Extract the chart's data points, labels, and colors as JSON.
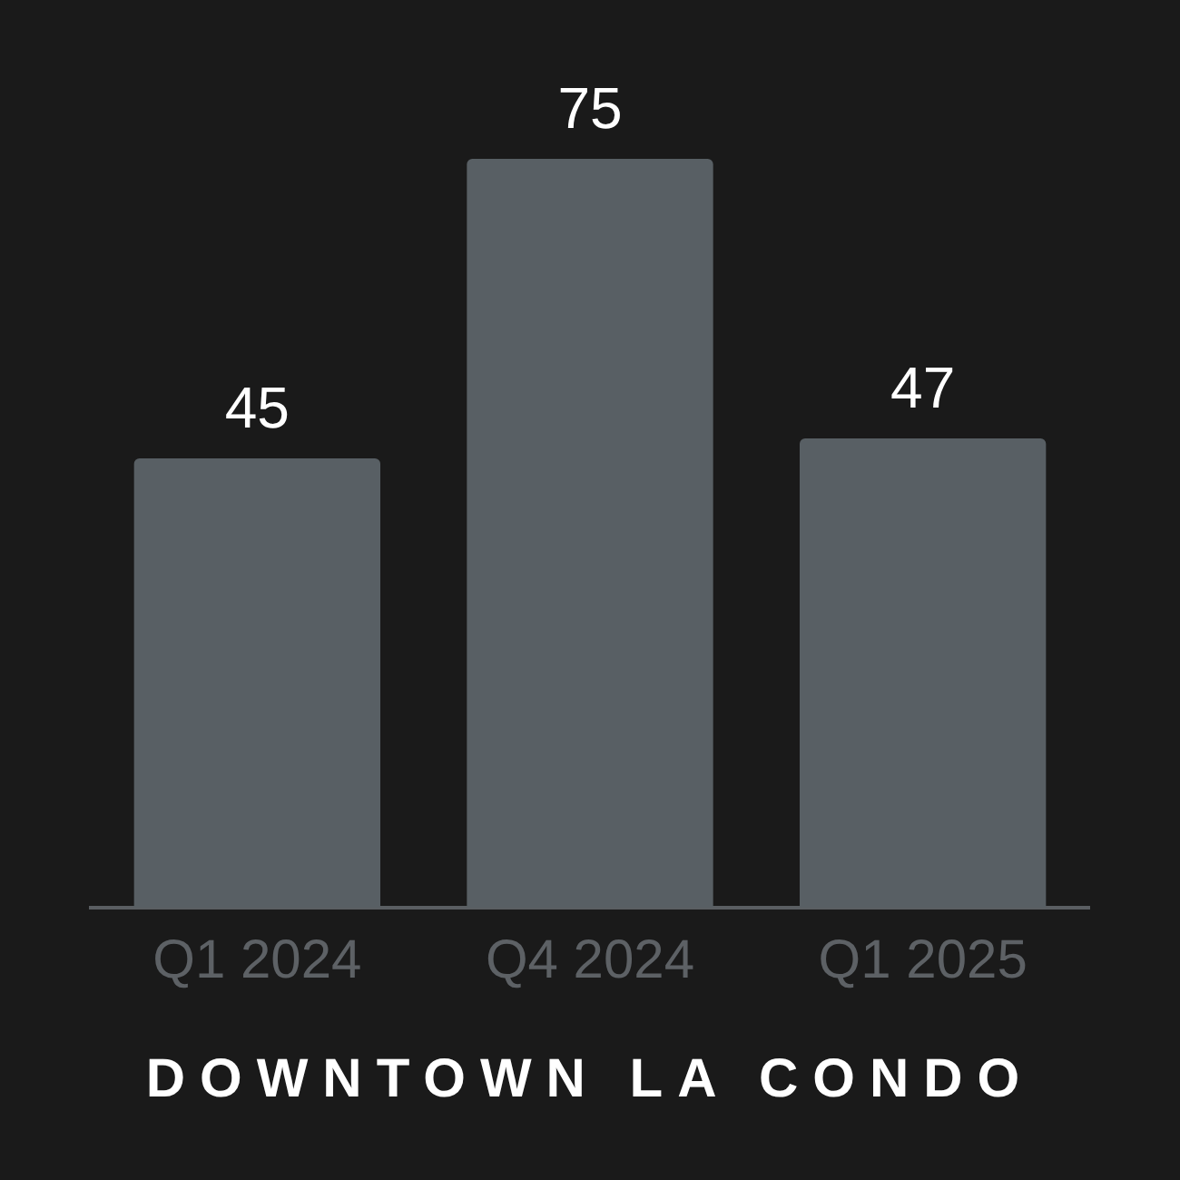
{
  "chart_data": {
    "type": "bar",
    "title": "DOWNTOWN LA CONDO",
    "categories": [
      "Q1 2024",
      "Q4 2024",
      "Q1 2025"
    ],
    "values": [
      45,
      75,
      47
    ],
    "color": "#585f64",
    "data_labels": true,
    "legend": false
  }
}
